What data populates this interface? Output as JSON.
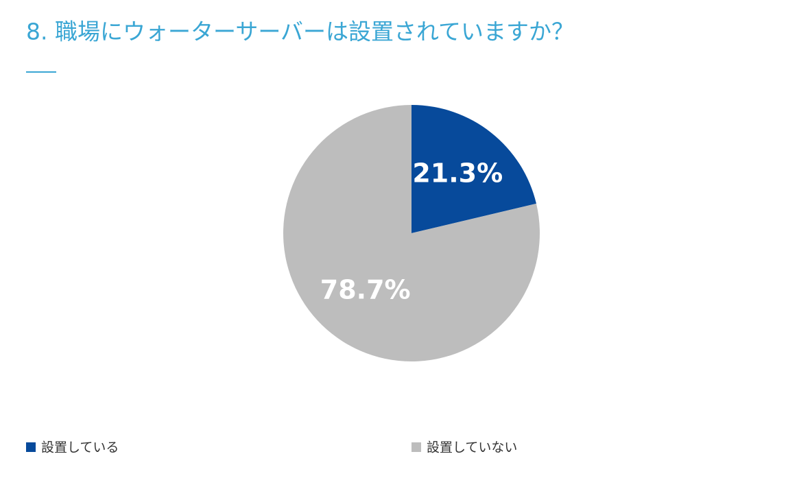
{
  "chart_data": {
    "type": "pie",
    "title": "8. 職場にウォーターサーバーは設置されていますか？",
    "categories": [
      "設置している",
      "設置していない"
    ],
    "values": [
      21.3,
      78.7
    ],
    "value_labels": [
      "21.3%",
      "78.7%"
    ],
    "colors": [
      "#074a9b",
      "#bdbdbd"
    ]
  }
}
